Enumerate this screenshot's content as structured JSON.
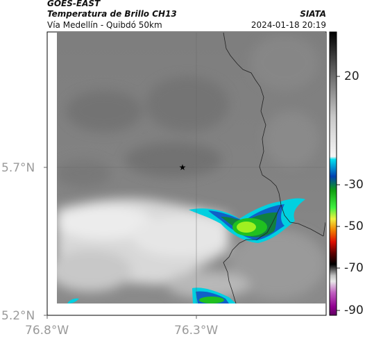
{
  "header": {
    "satellite": "GOES-EAST",
    "product": "Temperatura de Brillo CH13",
    "agency": "SIATA",
    "region": "Vía Medellín - Quibdó 50km",
    "datetime": "2024-01-18 20:19"
  },
  "map": {
    "lat_labels": [
      "5.7°N",
      "5.2°N"
    ],
    "lon_labels": [
      "76.8°W",
      "76.3°W"
    ],
    "marker_icon": "star-icon"
  },
  "colorbar": {
    "tick_labels": [
      "20",
      "-30",
      "-50",
      "-70",
      "-90"
    ]
  },
  "colors": {
    "cold_cyan": "#00d0e0",
    "blue": "#1060c8",
    "green": "#20c020",
    "yellow_green": "#a0f020",
    "border_line": "#222222"
  }
}
